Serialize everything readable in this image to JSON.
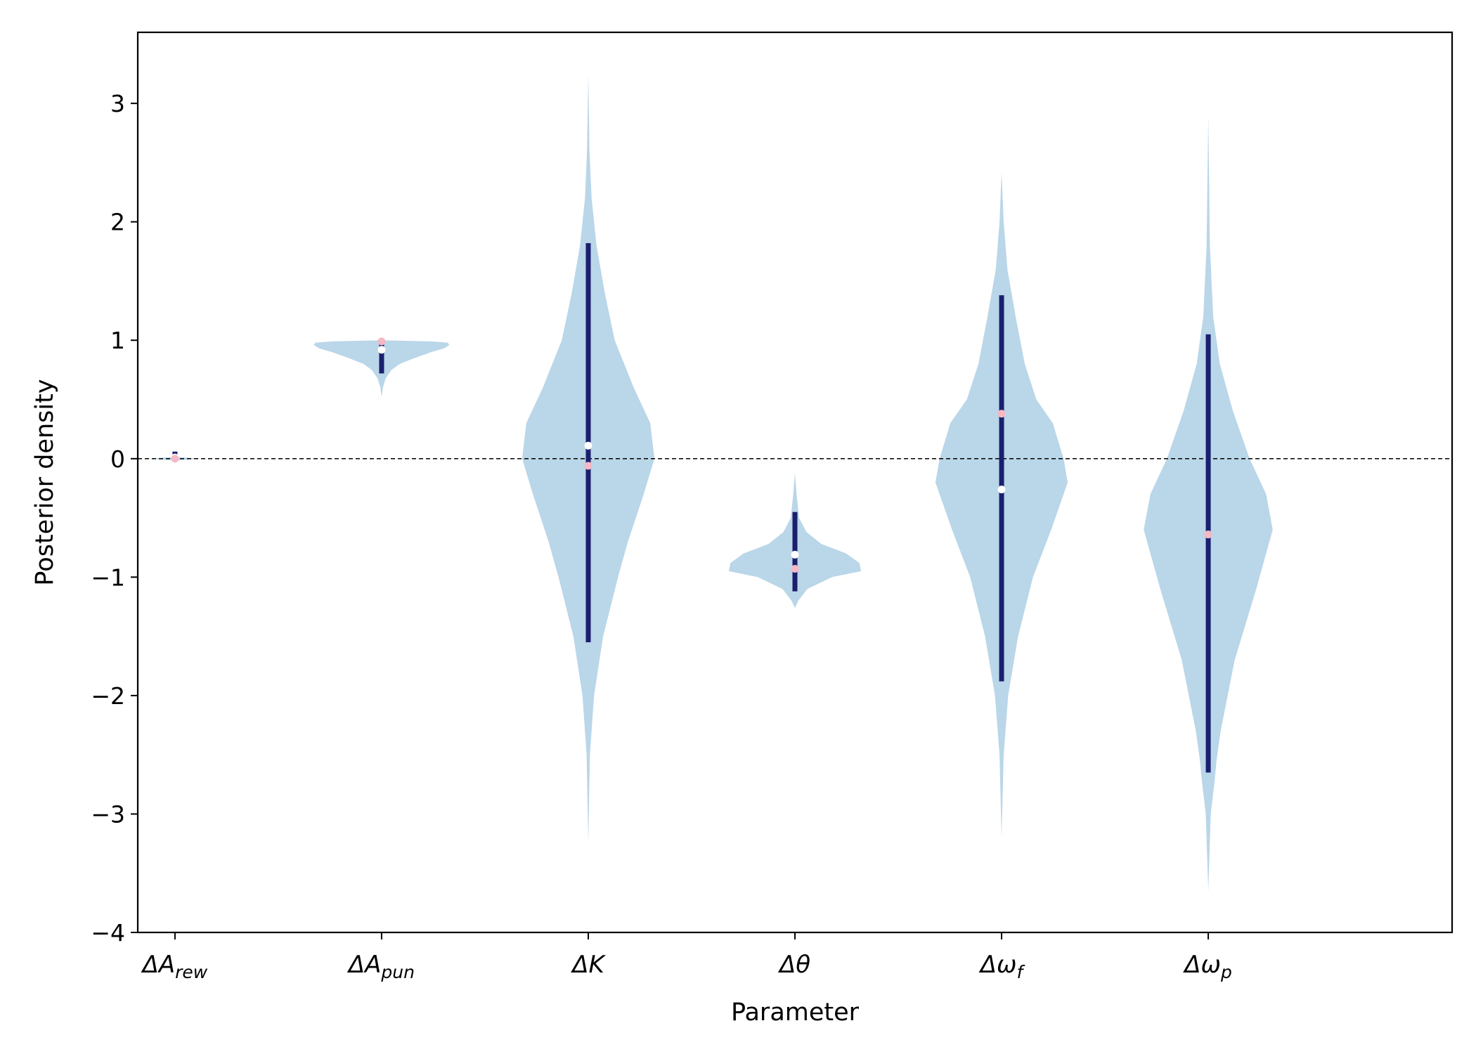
{
  "chart_data": {
    "type": "violin",
    "xlabel": "Parameter",
    "ylabel": "Posterior density",
    "ylim": [
      -4,
      3.6
    ],
    "y_ticks": [
      "3",
      "2",
      "1",
      "0",
      "−1",
      "−2",
      "−3",
      "−4"
    ],
    "y_tick_values": [
      3,
      2,
      1,
      0,
      -1,
      -2,
      -3,
      -4
    ],
    "grid": false,
    "reference_line": {
      "y": 0,
      "style": "dashed",
      "color": "#000000"
    },
    "colors": {
      "violin_fill": "#bad6e9",
      "interval_bar": "#1a1f6e",
      "median_marker": "#ffffff",
      "true_value_marker": "#f5b8c4"
    },
    "categories": [
      {
        "base": "ΔA",
        "sub": "rew"
      },
      {
        "base": "ΔA",
        "sub": "pun"
      },
      {
        "base": "ΔK",
        "sub": ""
      },
      {
        "base": "Δθ",
        "sub": ""
      },
      {
        "base": "Δω",
        "sub": "f"
      },
      {
        "base": "Δω",
        "sub": "p"
      }
    ],
    "violins": [
      {
        "profile": [
          [
            -0.015,
            0
          ],
          [
            -0.008,
            0.15
          ],
          [
            0,
            0.3
          ],
          [
            0.008,
            0.15
          ],
          [
            0.015,
            0
          ]
        ],
        "interval": [
          0.0,
          0.06
        ],
        "median": 0.01,
        "true_value": 0.0
      },
      {
        "profile": [
          [
            0.52,
            0
          ],
          [
            0.6,
            0.015
          ],
          [
            0.68,
            0.05
          ],
          [
            0.75,
            0.12
          ],
          [
            0.8,
            0.22
          ],
          [
            0.85,
            0.4
          ],
          [
            0.9,
            0.6
          ],
          [
            0.93,
            0.75
          ],
          [
            0.96,
            0.82
          ],
          [
            0.98,
            0.8
          ],
          [
            0.99,
            0.6
          ],
          [
            1.0,
            0
          ]
        ],
        "interval": [
          0.72,
          1.0
        ],
        "median": 0.92,
        "true_value": 0.99
      },
      {
        "profile": [
          [
            -3.25,
            0
          ],
          [
            -2.5,
            0.02
          ],
          [
            -2.0,
            0.07
          ],
          [
            -1.5,
            0.18
          ],
          [
            -1.0,
            0.36
          ],
          [
            -0.7,
            0.48
          ],
          [
            -0.3,
            0.67
          ],
          [
            0.0,
            0.8
          ],
          [
            0.3,
            0.75
          ],
          [
            0.6,
            0.55
          ],
          [
            1.0,
            0.32
          ],
          [
            1.4,
            0.2
          ],
          [
            1.8,
            0.1
          ],
          [
            2.2,
            0.04
          ],
          [
            2.6,
            0.015
          ],
          [
            3.25,
            0
          ]
        ],
        "interval": [
          -1.55,
          1.82
        ],
        "median": 0.11,
        "true_value": -0.06
      },
      {
        "profile": [
          [
            -1.26,
            0
          ],
          [
            -1.2,
            0.04
          ],
          [
            -1.1,
            0.15
          ],
          [
            -1.0,
            0.45
          ],
          [
            -0.95,
            0.8
          ],
          [
            -0.88,
            0.78
          ],
          [
            -0.8,
            0.62
          ],
          [
            -0.72,
            0.32
          ],
          [
            -0.62,
            0.14
          ],
          [
            -0.5,
            0.05
          ],
          [
            -0.3,
            0.02
          ],
          [
            -0.12,
            0
          ]
        ],
        "interval": [
          -1.12,
          -0.45
        ],
        "median": -0.81,
        "true_value": -0.93
      },
      {
        "profile": [
          [
            -3.2,
            0
          ],
          [
            -2.5,
            0.025
          ],
          [
            -2.0,
            0.08
          ],
          [
            -1.5,
            0.2
          ],
          [
            -1.0,
            0.38
          ],
          [
            -0.6,
            0.6
          ],
          [
            -0.2,
            0.8
          ],
          [
            0.0,
            0.75
          ],
          [
            0.3,
            0.62
          ],
          [
            0.5,
            0.42
          ],
          [
            0.8,
            0.28
          ],
          [
            1.2,
            0.17
          ],
          [
            1.6,
            0.07
          ],
          [
            2.0,
            0.025
          ],
          [
            2.42,
            0
          ]
        ],
        "interval": [
          -1.88,
          1.38
        ],
        "median": -0.26,
        "true_value": 0.38
      },
      {
        "profile": [
          [
            -3.65,
            0
          ],
          [
            -3.0,
            0.03
          ],
          [
            -2.7,
            0.08
          ],
          [
            -2.55,
            0.1
          ],
          [
            -2.3,
            0.15
          ],
          [
            -1.7,
            0.32
          ],
          [
            -1.1,
            0.58
          ],
          [
            -0.6,
            0.78
          ],
          [
            -0.3,
            0.7
          ],
          [
            0.0,
            0.5
          ],
          [
            0.4,
            0.3
          ],
          [
            0.8,
            0.14
          ],
          [
            1.2,
            0.06
          ],
          [
            1.8,
            0.02
          ],
          [
            2.9,
            0
          ]
        ],
        "interval": [
          -2.65,
          1.05
        ],
        "median": -0.64,
        "true_value": -0.64
      }
    ]
  }
}
